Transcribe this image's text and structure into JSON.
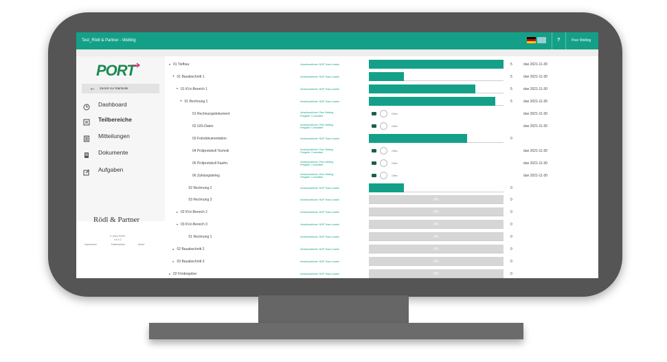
{
  "header": {
    "title": "Test_Rödl & Partner - Welling",
    "help": "?",
    "user": "Peer Welling"
  },
  "sidebar": {
    "logo": "PORT",
    "back": "Zurück zur Startseite",
    "menu": [
      "Dashboard",
      "Teilbereiche",
      "Mitteilungen",
      "Dokumente",
      "Aufgaben"
    ],
    "brand": "Rödl & Partner",
    "copyright": "© 2020 PORT",
    "version": "v.4.4.2",
    "footer_links": [
      "Impressum",
      "Datenschutz",
      "About"
    ]
  },
  "tree": {
    "rows": [
      {
        "label": "01 Tiefbau",
        "level": 0,
        "expanded": true,
        "responsible": [
          "Verantwortlicher: R&P Team Leader"
        ],
        "progress": 100,
        "count": 5,
        "due": "due 2021-11-30"
      },
      {
        "label": "01 Bauabschnitt 1",
        "level": 1,
        "expanded": true,
        "responsible": [
          "Verantwortlicher: R&P Team Leader"
        ],
        "progress": 26,
        "count": 5,
        "due": "due 2021-11-30"
      },
      {
        "label": "01 KVz-Bereich 1",
        "level": 2,
        "expanded": true,
        "responsible": [
          "Verantwortlicher: R&P Team Leader"
        ],
        "progress": 79,
        "count": 5,
        "due": "due 2021-11-30"
      },
      {
        "label": "01 Rechnung 1",
        "level": 3,
        "expanded": true,
        "responsible": [
          "Verantwortlicher: R&P Team Leader"
        ],
        "progress": 94,
        "count": 5,
        "due": "due 2021-11-30"
      },
      {
        "label": "01 Rechnungsdokument",
        "level": 4,
        "responsible": [
          "Verantwortlicher: Peer Welling",
          "Freigabe: Consultant"
        ],
        "status": "Offen",
        "due": "due 2021-11-30"
      },
      {
        "label": "02 GIS-Daten",
        "level": 4,
        "responsible": [
          "Verantwortlicher: Peer Welling",
          "Freigabe: Consultant"
        ],
        "status": "Offen",
        "due": "due 2021-11-30"
      },
      {
        "label": "03 Fotodokumentation",
        "level": 4,
        "responsible": [
          "Verantwortlicher: R&P Team Leader"
        ],
        "progress": 73,
        "count": 0
      },
      {
        "label": "04 Prüfprotokoll Technik",
        "level": 4,
        "responsible": [
          "Verantwortlicher: Peer Welling",
          "Freigabe: Consultant"
        ],
        "status": "Offen",
        "due": "due 2021-11-30"
      },
      {
        "label": "05 Prüfprotokoll Kaufm.",
        "level": 4,
        "responsible": [
          "Verantwortlicher: Peer Welling",
          "Freigabe: Consultant"
        ],
        "status": "Offen",
        "due": "due 2021-11-30"
      },
      {
        "label": "06 Zahlungsbeleg",
        "level": 4,
        "responsible": [
          "Verantwortlicher: Peer Welling",
          "Freigabe: Consultant"
        ],
        "status": "Offen",
        "due": "due 2021-11-30"
      },
      {
        "label": "02 Rechnung 2",
        "level": 3,
        "responsible": [
          "Verantwortlicher: R&P Team Leader"
        ],
        "progress": 26,
        "count": 0
      },
      {
        "label": "03 Rechnung 3",
        "level": 3,
        "responsible": [
          "Verantwortlicher: R&P Team Leader"
        ],
        "progress": 0,
        "progress_label": "0%",
        "count": 0
      },
      {
        "label": "02 KVz-Bereich 2",
        "level": 2,
        "expanded": false,
        "responsible": [
          "Verantwortlicher: R&P Team Leader"
        ],
        "progress": 0,
        "progress_label": "0%",
        "count": 0
      },
      {
        "label": "03 KVz-Bereich 3",
        "level": 2,
        "expanded": true,
        "responsible": [
          "Verantwortlicher: R&P Team Leader"
        ],
        "progress": 0,
        "progress_label": "0%",
        "count": 0
      },
      {
        "label": "01 Rechnung 1",
        "level": 3,
        "responsible": [
          "Verantwortlicher: R&P Team Leader"
        ],
        "progress": 0,
        "progress_label": "0%",
        "count": 0
      },
      {
        "label": "02 Bauabschnitt 2",
        "level": 1,
        "expanded": false,
        "responsible": [
          "Verantwortlicher: R&P Team Leader"
        ],
        "progress": 0,
        "progress_label": "0%",
        "count": 0
      },
      {
        "label": "03 Bauabschnitt 3",
        "level": 1,
        "expanded": false,
        "responsible": [
          "Verantwortlicher: R&P Team Leader"
        ],
        "progress": 0,
        "progress_label": "0%",
        "count": 0
      },
      {
        "label": "02 Fördergeber",
        "level": 0,
        "expanded": false,
        "responsible": [
          "Verantwortlicher: R&P Team Leader"
        ],
        "progress": 0,
        "progress_label": "0%",
        "count": 0
      }
    ]
  }
}
